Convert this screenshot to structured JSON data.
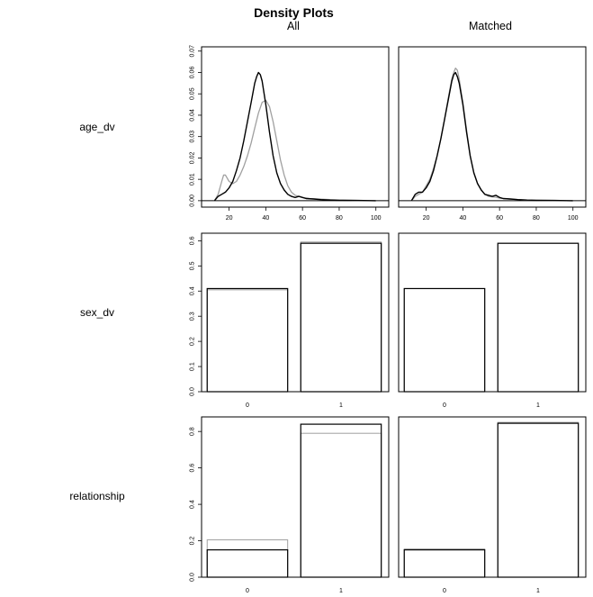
{
  "title": "Density Plots",
  "column_titles": [
    "All",
    "Matched"
  ],
  "row_labels": [
    "age_dv",
    "sex_dv",
    "relationship"
  ],
  "colors": {
    "treated": "#000000",
    "control": "#a0a0a0",
    "background": "#ffffff"
  },
  "chart_data": [
    {
      "type": "line",
      "row": "age_dv",
      "column": "All",
      "xlim": [
        5,
        107
      ],
      "ylim": [
        -0.003,
        0.072
      ],
      "xticks": [
        20,
        40,
        60,
        80,
        100
      ],
      "yticks": [
        0.0,
        0.01,
        0.02,
        0.03,
        0.04,
        0.05,
        0.06,
        0.07
      ],
      "ytick_labels": [
        "0.00",
        "0.01",
        "0.02",
        "0.03",
        "0.04",
        "0.05",
        "0.06",
        "0.07"
      ],
      "baseline": 0,
      "series": [
        {
          "color": "#a0a0a0",
          "x": [
            12,
            14,
            16,
            17,
            18,
            20,
            22,
            24,
            26,
            28,
            30,
            32,
            34,
            36,
            38,
            40,
            42,
            44,
            46,
            48,
            50,
            52,
            54,
            56,
            58,
            60,
            64,
            70,
            80,
            90,
            100
          ],
          "y": [
            0.0,
            0.003,
            0.009,
            0.012,
            0.012,
            0.009,
            0.008,
            0.009,
            0.012,
            0.016,
            0.021,
            0.027,
            0.034,
            0.041,
            0.046,
            0.047,
            0.044,
            0.037,
            0.028,
            0.019,
            0.012,
            0.007,
            0.004,
            0.0025,
            0.002,
            0.0015,
            0.001,
            0.0007,
            0.0003,
            0.0001,
            0.0
          ]
        },
        {
          "color": "#000000",
          "x": [
            12,
            14,
            16,
            18,
            20,
            22,
            24,
            26,
            28,
            30,
            32,
            34,
            35,
            36,
            37,
            38,
            40,
            42,
            44,
            46,
            48,
            50,
            52,
            54,
            56,
            58,
            60,
            62,
            66,
            70,
            75,
            80,
            90,
            100
          ],
          "y": [
            0.0,
            0.002,
            0.003,
            0.004,
            0.006,
            0.009,
            0.014,
            0.02,
            0.028,
            0.037,
            0.046,
            0.055,
            0.058,
            0.06,
            0.059,
            0.056,
            0.045,
            0.032,
            0.021,
            0.013,
            0.008,
            0.005,
            0.003,
            0.002,
            0.0015,
            0.002,
            0.0015,
            0.001,
            0.0008,
            0.0005,
            0.0003,
            0.0002,
            0.0001,
            0.0
          ]
        }
      ]
    },
    {
      "type": "line",
      "row": "age_dv",
      "column": "Matched",
      "xlim": [
        5,
        107
      ],
      "ylim": [
        -0.003,
        0.072
      ],
      "xticks": [
        20,
        40,
        60,
        80,
        100
      ],
      "yticks": [],
      "ytick_labels": [],
      "baseline": 0,
      "series": [
        {
          "color": "#a0a0a0",
          "x": [
            12,
            14,
            16,
            18,
            20,
            22,
            24,
            26,
            28,
            30,
            32,
            34,
            35,
            36,
            37,
            38,
            40,
            42,
            44,
            46,
            48,
            50,
            52,
            54,
            56,
            58,
            60,
            62,
            66,
            70,
            75,
            80,
            90,
            100
          ],
          "y": [
            0.0,
            0.002,
            0.003,
            0.004,
            0.007,
            0.01,
            0.015,
            0.021,
            0.029,
            0.038,
            0.048,
            0.057,
            0.06,
            0.062,
            0.061,
            0.057,
            0.046,
            0.033,
            0.021,
            0.013,
            0.008,
            0.005,
            0.003,
            0.002,
            0.0018,
            0.0016,
            0.0012,
            0.001,
            0.0007,
            0.0005,
            0.0003,
            0.0002,
            0.0001,
            0.0
          ]
        },
        {
          "color": "#000000",
          "x": [
            12,
            14,
            16,
            18,
            20,
            22,
            24,
            26,
            28,
            30,
            32,
            34,
            35,
            36,
            37,
            38,
            40,
            42,
            44,
            46,
            48,
            50,
            52,
            54,
            56,
            58,
            60,
            62,
            66,
            70,
            75,
            80,
            90,
            100
          ],
          "y": [
            0.0,
            0.003,
            0.004,
            0.004,
            0.006,
            0.009,
            0.014,
            0.021,
            0.029,
            0.038,
            0.047,
            0.056,
            0.059,
            0.06,
            0.058,
            0.055,
            0.045,
            0.032,
            0.021,
            0.013,
            0.008,
            0.005,
            0.003,
            0.0025,
            0.002,
            0.0025,
            0.0015,
            0.001,
            0.0008,
            0.0005,
            0.0003,
            0.0002,
            0.0001,
            0.0
          ]
        }
      ]
    },
    {
      "type": "bar",
      "row": "sex_dv",
      "column": "All",
      "categories": [
        "0",
        "1"
      ],
      "ylim": [
        0,
        0.63
      ],
      "yticks": [
        0.0,
        0.1,
        0.2,
        0.3,
        0.4,
        0.5,
        0.6
      ],
      "ytick_labels": [
        "0.0",
        "0.1",
        "0.2",
        "0.3",
        "0.4",
        "0.5",
        "0.6"
      ],
      "series": [
        {
          "color": "#a0a0a0",
          "values": [
            0.405,
            0.595
          ]
        },
        {
          "color": "#000000",
          "values": [
            0.41,
            0.59
          ]
        }
      ]
    },
    {
      "type": "bar",
      "row": "sex_dv",
      "column": "Matched",
      "categories": [
        "0",
        "1"
      ],
      "ylim": [
        0,
        0.63
      ],
      "yticks": [],
      "ytick_labels": [],
      "series": [
        {
          "color": "#a0a0a0",
          "values": [
            0.41,
            0.59
          ]
        },
        {
          "color": "#000000",
          "values": [
            0.41,
            0.59
          ]
        }
      ]
    },
    {
      "type": "bar",
      "row": "relationship",
      "column": "All",
      "categories": [
        "0",
        "1"
      ],
      "ylim": [
        0,
        0.88
      ],
      "yticks": [
        0.0,
        0.2,
        0.4,
        0.6,
        0.8
      ],
      "ytick_labels": [
        "0.0",
        "0.2",
        "0.4",
        "0.6",
        "0.8"
      ],
      "series": [
        {
          "color": "#a0a0a0",
          "values": [
            0.205,
            0.79
          ]
        },
        {
          "color": "#000000",
          "values": [
            0.15,
            0.84
          ]
        }
      ]
    },
    {
      "type": "bar",
      "row": "relationship",
      "column": "Matched",
      "categories": [
        "0",
        "1"
      ],
      "ylim": [
        0,
        0.88
      ],
      "yticks": [],
      "ytick_labels": [],
      "series": [
        {
          "color": "#a0a0a0",
          "values": [
            0.155,
            0.85
          ]
        },
        {
          "color": "#000000",
          "values": [
            0.15,
            0.845
          ]
        }
      ]
    }
  ]
}
